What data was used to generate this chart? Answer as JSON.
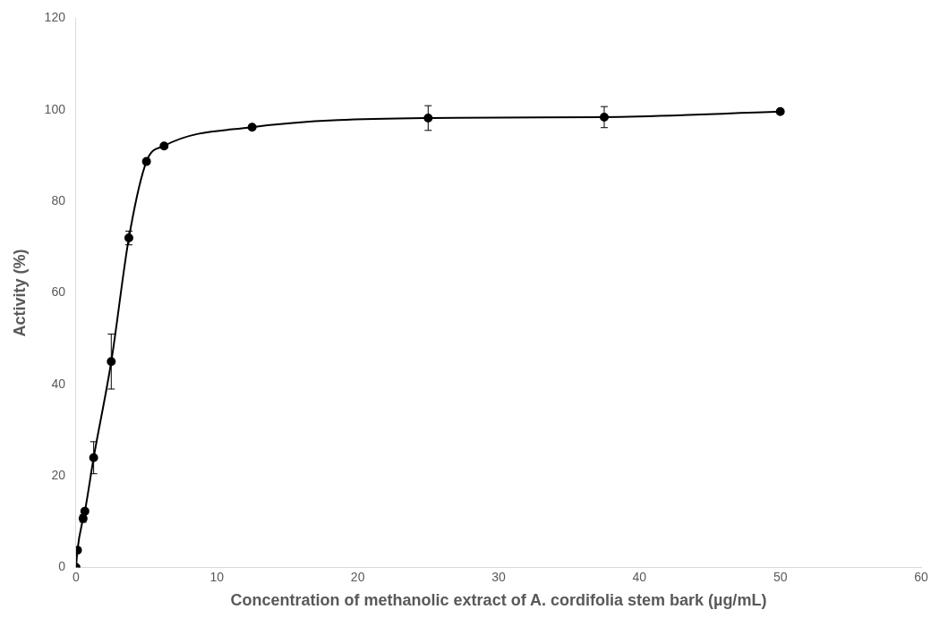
{
  "chart_data": {
    "type": "line",
    "xlabel": "Concentration of methanolic extract of A. cordifolia stem bark (µg/mL)",
    "ylabel": "Activity (%)",
    "x": [
      0,
      0.1,
      0.5,
      0.625,
      1.25,
      2.5,
      3.75,
      5,
      6.25,
      12.5,
      25,
      37.5,
      50
    ],
    "series": [
      {
        "color": "#000000",
        "values": [
          0,
          3.8,
          10.7,
          12.3,
          24,
          45,
          72,
          88.7,
          92.1,
          96.2,
          98.2,
          98.4,
          99.6
        ],
        "errors": [
          null,
          null,
          0.8,
          null,
          3.5,
          6,
          1.5,
          null,
          null,
          null,
          2.7,
          2.3,
          null
        ]
      }
    ],
    "xlim": [
      0,
      60
    ],
    "xticks": [
      0,
      10,
      20,
      30,
      40,
      50,
      60
    ],
    "ylim": [
      0,
      120
    ],
    "yticks": [
      0,
      20,
      40,
      60,
      80,
      100,
      120
    ],
    "grid": false,
    "legend": false,
    "marker": "circle",
    "line_style": "solid"
  }
}
